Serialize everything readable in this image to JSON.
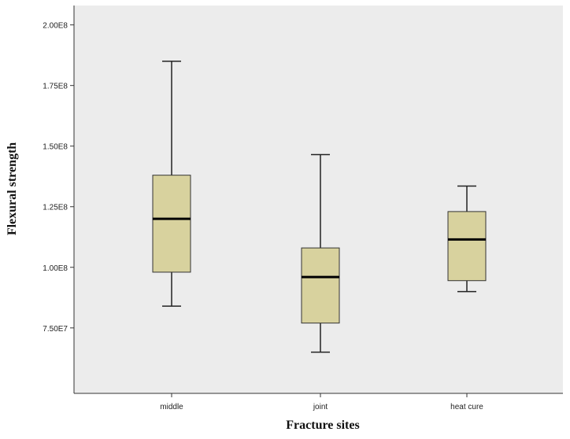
{
  "chart_data": {
    "type": "boxplot",
    "xlabel": "Fracture sites",
    "ylabel": "Flexural strength",
    "ylim": [
      48000000,
      208000000
    ],
    "yticks": [
      75000000,
      100000000,
      125000000,
      150000000,
      175000000,
      200000000
    ],
    "ytick_labels": [
      "7.50E7",
      "1.00E8",
      "1.25E8",
      "1.50E8",
      "1.75E8",
      "2.00E8"
    ],
    "categories": [
      "middle",
      "joint",
      "heat cure"
    ],
    "boxes": [
      {
        "category": "middle",
        "min": 84000000,
        "q1": 98000000,
        "median": 120000000,
        "q3": 138000000,
        "max": 185000000
      },
      {
        "category": "joint",
        "min": 65000000,
        "q1": 77000000,
        "median": 96000000,
        "q3": 108000000,
        "max": 146500000
      },
      {
        "category": "heat cure",
        "min": 90000000,
        "q1": 94500000,
        "median": 111500000,
        "q3": 123000000,
        "max": 133500000
      }
    ],
    "box_color": "#d8d29e",
    "plot_background": "#ececec",
    "grid": false
  }
}
